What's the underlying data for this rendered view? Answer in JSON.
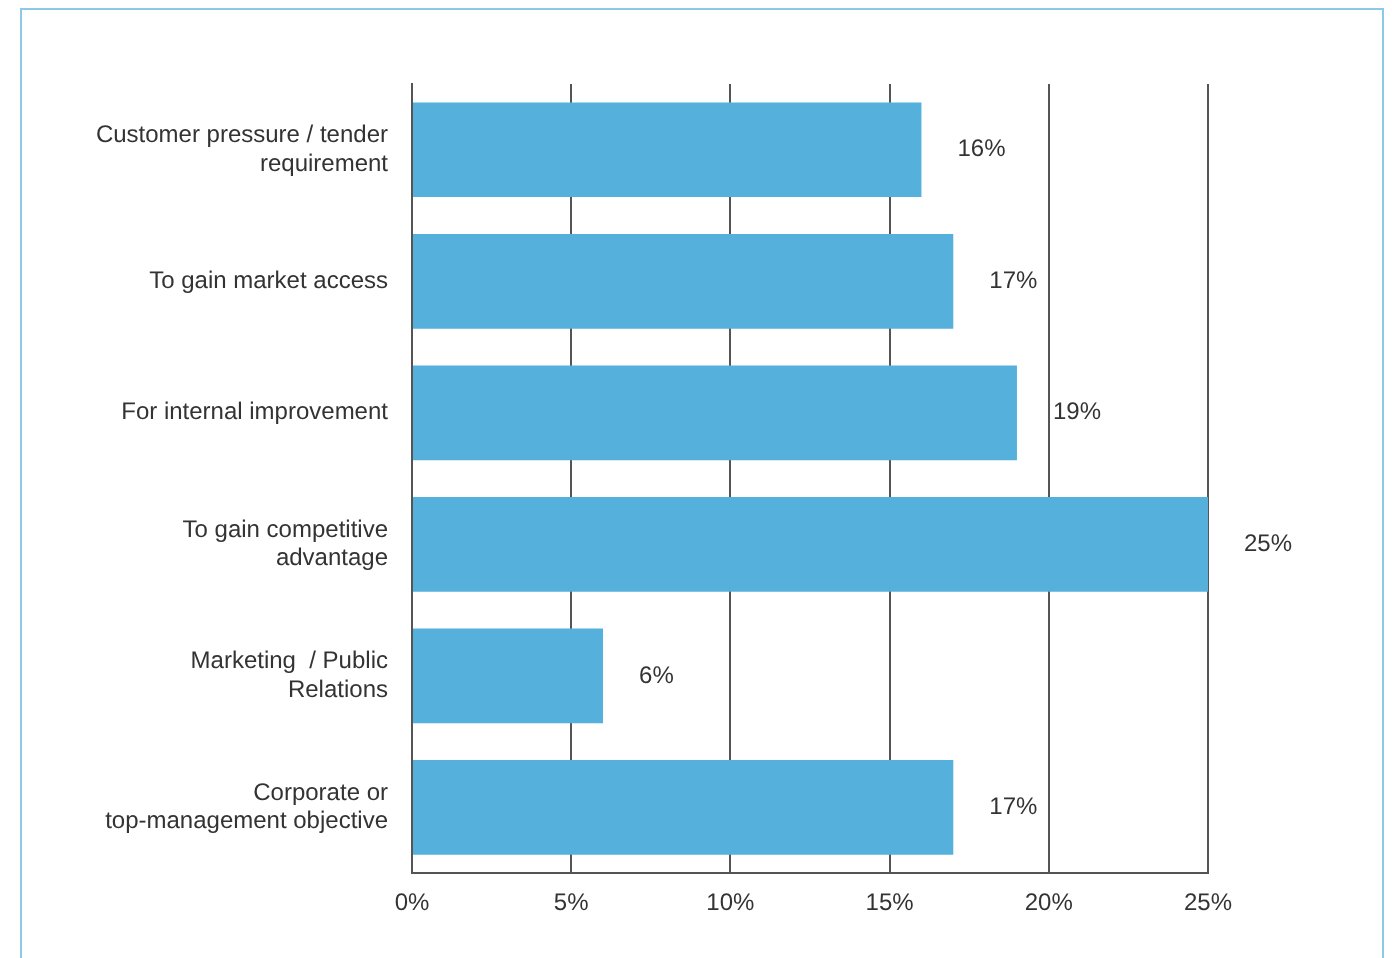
{
  "chart_data": {
    "type": "bar",
    "orientation": "horizontal",
    "categories": [
      "Customer pressure / tender requirement",
      "To gain market access",
      "For internal improvement",
      "To gain competitive advantage",
      "Marketing  / Public Relations",
      "Corporate or top-management objective"
    ],
    "values": [
      16,
      17,
      19,
      25,
      6,
      17
    ],
    "value_labels": [
      "16%",
      "17%",
      "19%",
      "25%",
      "6%",
      "17%"
    ],
    "color": "#55b0db",
    "xlim": [
      0,
      25
    ],
    "xticks": [
      {
        "value": 0,
        "label": "0%"
      },
      {
        "value": 5,
        "label": "5%"
      },
      {
        "value": 10,
        "label": "10%"
      },
      {
        "value": 15,
        "label": "15%"
      },
      {
        "value": 20,
        "label": "20%"
      },
      {
        "value": 25,
        "label": "25%"
      }
    ],
    "grid": "x",
    "legend": false
  }
}
